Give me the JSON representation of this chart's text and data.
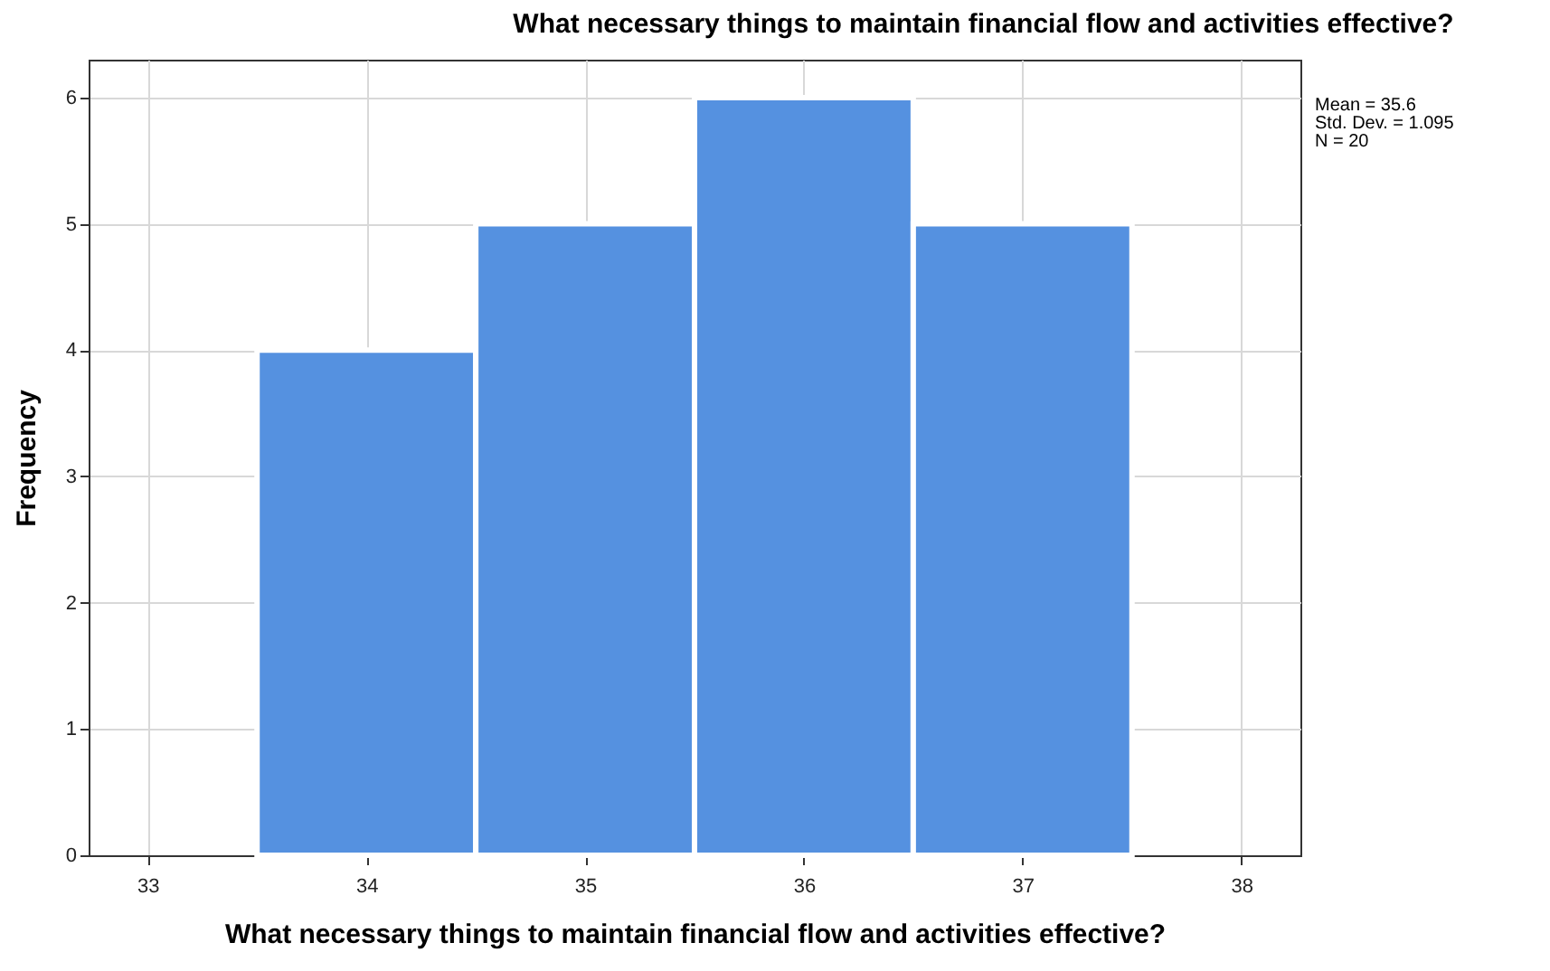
{
  "chart_data": {
    "type": "histogram",
    "title": "What necessary things to maintain financial flow and activities effective?",
    "xlabel": "What necessary things to maintain financial flow and activities effective?",
    "ylabel": "Frequency",
    "bins": [
      33.5,
      34.5,
      35.5,
      36.5,
      37.5
    ],
    "values": [
      4,
      5,
      6,
      5
    ],
    "color": "#5591e0",
    "xlim": [
      32.73,
      38.27
    ],
    "xticks": [
      33,
      34,
      35,
      36,
      37,
      38
    ],
    "ylim": [
      0,
      6.3
    ],
    "yticks": [
      0,
      1,
      2,
      3,
      4,
      5,
      6
    ],
    "grid": true,
    "annotations": [
      "Mean = 35.6",
      "Std. Dev. = 1.095",
      "N = 20"
    ]
  }
}
